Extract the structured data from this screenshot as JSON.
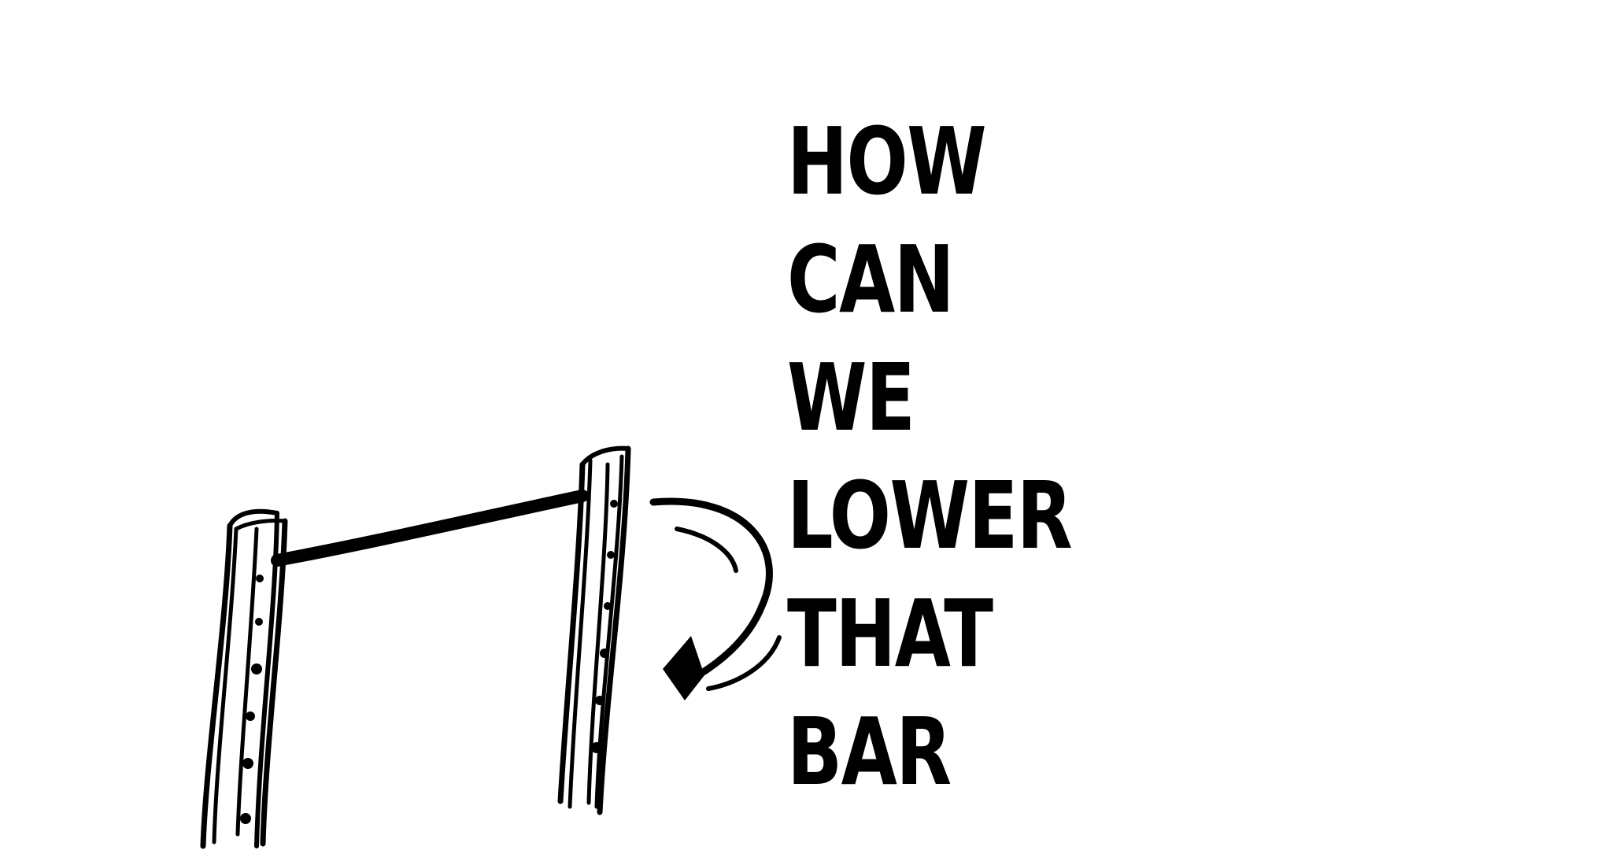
{
  "caption": {
    "lines": [
      "HOW",
      "CAN",
      "WE",
      "LOWER",
      "THAT",
      "BAR"
    ]
  },
  "colors": {
    "ink": "#000000",
    "paper": "#ffffff"
  },
  "illustration": {
    "post_left": "post",
    "post_right": "post",
    "bar": "bar",
    "arrow": "curved-arrow"
  }
}
